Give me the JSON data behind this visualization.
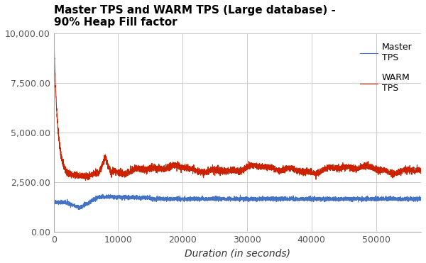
{
  "title": "Master TPS and WARM TPS (Large database) -\n90% Heap Fill factor",
  "xlabel": "Duration (in seconds)",
  "ylabel": "",
  "xlim": [
    0,
    57000
  ],
  "ylim": [
    0,
    10000
  ],
  "yticks": [
    0,
    2500,
    5000,
    7500,
    10000
  ],
  "xticks": [
    0,
    10000,
    20000,
    30000,
    40000,
    50000
  ],
  "master_color": "#4472c4",
  "warm_color": "#cc2200",
  "legend_labels": [
    "Master\nTPS",
    "WARM\nTPS"
  ],
  "background_color": "#ffffff",
  "grid_color": "#cccccc",
  "title_fontsize": 11,
  "axis_label_fontsize": 10,
  "tick_fontsize": 9,
  "legend_fontsize": 9,
  "figsize": [
    6.0,
    3.71
  ],
  "dpi": 100
}
